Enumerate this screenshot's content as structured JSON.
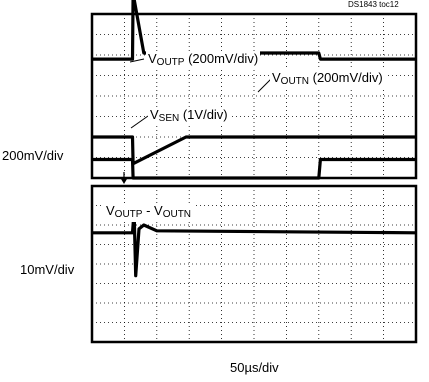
{
  "figure_id": "DS1843 toc12",
  "top_scale": "200mV/div",
  "bottom_scale": "10mV/div",
  "time_scale": "50µs/div",
  "labels": {
    "voutp": {
      "main": "V",
      "sub": "OUTP",
      "rest": " (200mV/div)"
    },
    "voutn": {
      "main": "V",
      "sub": "OUTN",
      "rest": " (200mV/div)"
    },
    "vsen": {
      "main": "V",
      "sub": "SEN",
      "rest": " (1V/div)"
    },
    "diff": {
      "main": "V",
      "sub": "OUTP",
      "mid": " - V",
      "sub2": "OUTN"
    }
  },
  "chart_data": [
    {
      "type": "line",
      "title": "",
      "ylabel": "200mV/div",
      "xlabel": "50µs/div",
      "x_range_div": [
        0,
        10
      ],
      "y_range_div": [
        0,
        8
      ],
      "grid": true,
      "series": [
        {
          "name": "VOUTP (200mV/div)",
          "x": [
            0,
            1.25,
            1.27,
            1.6,
            2.9,
            7.0,
            7.05,
            10
          ],
          "y": [
            5.8,
            5.8,
            9.0,
            6.1,
            6.1,
            6.1,
            5.8,
            5.8
          ]
        },
        {
          "name": "VOUTN (200mV/div)",
          "x": [
            0,
            1.25,
            1.27,
            2.9,
            7.0,
            7.05,
            10
          ],
          "y": [
            2.0,
            2.0,
            0.7,
            2.0,
            2.0,
            2.0,
            2.0
          ]
        },
        {
          "name": "VSEN (1V/div)",
          "x": [
            0,
            1.25,
            1.27,
            7.0,
            7.05,
            10
          ],
          "y": [
            0.9,
            0.9,
            0.0,
            0.0,
            0.9,
            0.9
          ]
        }
      ]
    },
    {
      "type": "line",
      "title": "",
      "ylabel": "10mV/div",
      "xlabel": "50µs/div",
      "x_range_div": [
        0,
        10
      ],
      "y_range_div": [
        0,
        8
      ],
      "grid": true,
      "series": [
        {
          "name": "VOUTP - VOUTN",
          "x": [
            0,
            1.25,
            1.3,
            1.35,
            1.45,
            1.6,
            2.0,
            10
          ],
          "y": [
            5.6,
            5.6,
            6.7,
            3.4,
            5.8,
            6.0,
            5.7,
            5.6
          ]
        }
      ]
    }
  ]
}
